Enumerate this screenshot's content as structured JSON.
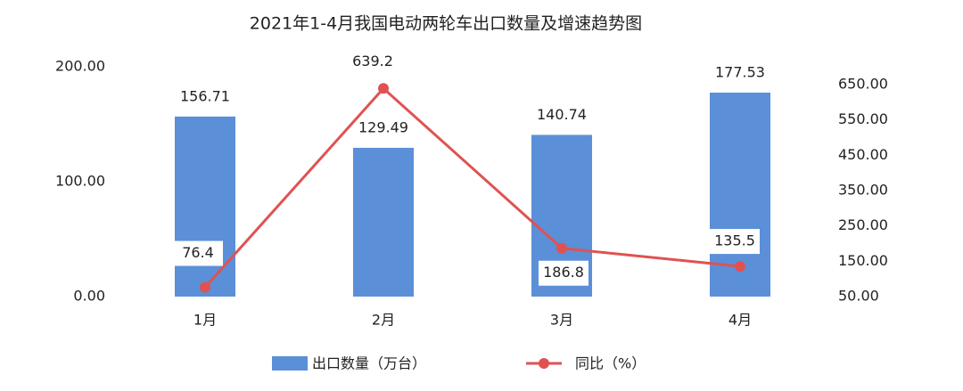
{
  "chart_data": {
    "type": "bar",
    "title": "2021年1-4月我国电动两轮车出口数量及增速趋势图",
    "categories": [
      "1月",
      "2月",
      "3月",
      "4月"
    ],
    "series": [
      {
        "name": "出口数量（万台）",
        "type": "bar",
        "color": "#5b8fd8",
        "values": [
          156.71,
          129.49,
          140.74,
          177.53
        ]
      },
      {
        "name": "同比（%）",
        "type": "line",
        "axis": "y2",
        "color": "#e05252",
        "values": [
          76.4,
          639.2,
          186.8,
          135.5
        ]
      }
    ],
    "ylim": [
      0,
      200
    ],
    "yticks": [
      {
        "value": 0,
        "label": "0.00"
      },
      {
        "value": 100,
        "label": "100.00"
      },
      {
        "value": 200,
        "label": "200.00"
      }
    ],
    "y2lim": [
      50,
      650
    ],
    "y2ticks": [
      {
        "value": 50,
        "label": "50.00"
      },
      {
        "value": 150,
        "label": "150.00"
      },
      {
        "value": 250,
        "label": "250.00"
      },
      {
        "value": 350,
        "label": "350.00"
      },
      {
        "value": 450,
        "label": "450.00"
      },
      {
        "value": 550,
        "label": "550.00"
      },
      {
        "value": 650,
        "label": "650.00"
      }
    ],
    "grid": false,
    "legend": "bottom"
  }
}
